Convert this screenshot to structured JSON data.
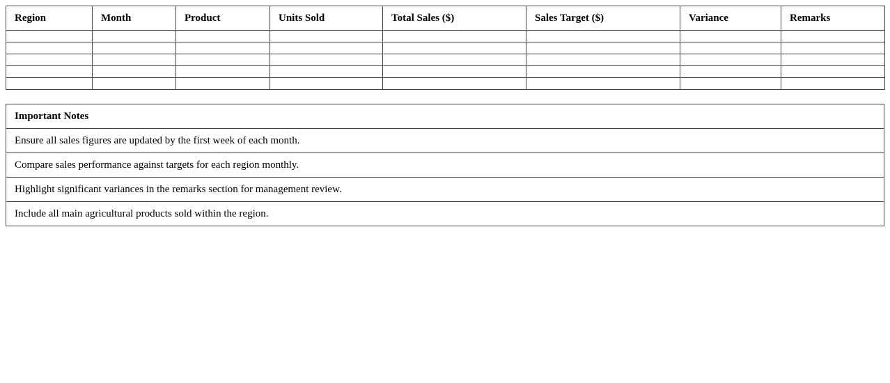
{
  "table": {
    "headers": [
      "Region",
      "Month",
      "Product",
      "Units Sold",
      "Total Sales ($)",
      "Sales Target ($)",
      "Variance",
      "Remarks"
    ]
  },
  "notes": {
    "title": "Important Notes",
    "items": [
      "Ensure all sales figures are updated by the first week of each month.",
      "Compare sales performance against targets for each region monthly.",
      "Highlight significant variances in the remarks section for management review.",
      "Include all main agricultural products sold within the region."
    ]
  }
}
